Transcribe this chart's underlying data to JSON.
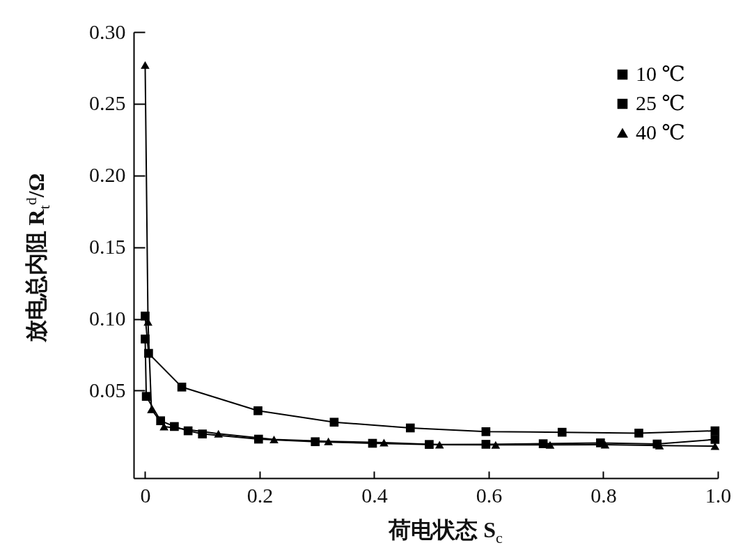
{
  "chart_data": {
    "type": "line",
    "xlabel": "荷电状态 S$_{c}$",
    "ylabel": "放电总内阻 R$_{t}$$^{d}$/Ω",
    "xlim": [
      -0.02,
      1.0
    ],
    "xticks": [
      0,
      0.2,
      0.4,
      0.6,
      0.8,
      {
        "value": 1.0,
        "label": "1.0"
      }
    ],
    "ylim": [
      -0.011,
      0.3
    ],
    "yticks": [
      0.05,
      {
        "value": 0.1,
        "label": "0.10"
      },
      0.15,
      {
        "value": 0.2,
        "label": "0.20"
      },
      0.25,
      {
        "value": 0.3,
        "label": "0.30"
      }
    ],
    "legend": "top right",
    "grid": false,
    "line_style": "solid",
    "series": [
      {
        "name": "10 ℃",
        "color": "#000000",
        "marker": "square",
        "x": [
          0.0,
          0.006,
          0.064,
          0.197,
          0.33,
          0.463,
          0.595,
          0.728,
          0.862,
          0.995
        ],
        "values": [
          0.102,
          0.076,
          0.0525,
          0.036,
          0.028,
          0.024,
          0.0214,
          0.021,
          0.0204,
          0.022
        ]
      },
      {
        "name": "25 ℃",
        "color": "#000000",
        "marker": "square",
        "x": [
          0.0,
          0.002,
          0.027,
          0.051,
          0.075,
          0.1,
          0.198,
          0.297,
          0.397,
          0.496,
          0.595,
          0.695,
          0.795,
          0.894,
          0.995
        ],
        "values": [
          0.086,
          0.046,
          0.029,
          0.025,
          0.022,
          0.0198,
          0.0162,
          0.0144,
          0.0133,
          0.0125,
          0.0126,
          0.013,
          0.0136,
          0.0128,
          0.016
        ]
      },
      {
        "name": "40 ℃",
        "color": "#000000",
        "marker": "triangle",
        "x": [
          0.0,
          0.005,
          0.011,
          0.033,
          0.128,
          0.225,
          0.32,
          0.417,
          0.514,
          0.612,
          0.707,
          0.803,
          0.898,
          0.995
        ],
        "values": [
          0.277,
          0.098,
          0.037,
          0.025,
          0.02,
          0.016,
          0.0146,
          0.0138,
          0.0123,
          0.0122,
          0.0122,
          0.0123,
          0.0117,
          0.0113
        ]
      }
    ]
  }
}
